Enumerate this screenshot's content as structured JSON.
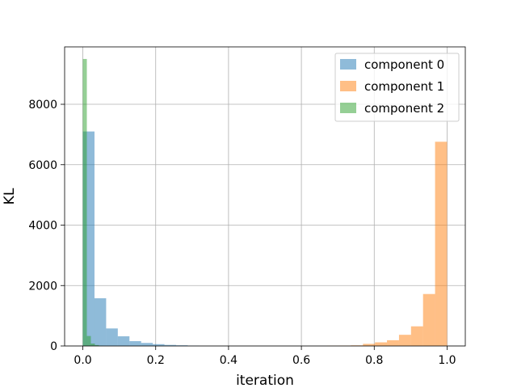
{
  "chart_data": {
    "type": "bar",
    "title": "",
    "xlabel": "iteration",
    "ylabel": "KL",
    "xlim": [
      -0.05,
      1.05
    ],
    "ylim": [
      0,
      9900
    ],
    "grid": true,
    "legend_position": "top-right",
    "x_ticks": [
      "0.0",
      "0.2",
      "0.4",
      "0.6",
      "0.8",
      "1.0"
    ],
    "x_tick_values": [
      0.0,
      0.2,
      0.4,
      0.6,
      0.8,
      1.0
    ],
    "y_ticks": [
      "0",
      "2000",
      "4000",
      "6000",
      "8000"
    ],
    "y_tick_values": [
      0,
      2000,
      4000,
      6000,
      8000
    ],
    "series": [
      {
        "name": "component 0",
        "color": "#1f77b4",
        "opacity": 0.5,
        "bins": [
          {
            "x0": 0.0,
            "x1": 0.032,
            "count": 7100
          },
          {
            "x0": 0.032,
            "x1": 0.064,
            "count": 1580
          },
          {
            "x0": 0.064,
            "x1": 0.096,
            "count": 580
          },
          {
            "x0": 0.096,
            "x1": 0.128,
            "count": 320
          },
          {
            "x0": 0.128,
            "x1": 0.16,
            "count": 160
          },
          {
            "x0": 0.16,
            "x1": 0.192,
            "count": 100
          },
          {
            "x0": 0.192,
            "x1": 0.224,
            "count": 60
          },
          {
            "x0": 0.224,
            "x1": 0.256,
            "count": 35
          },
          {
            "x0": 0.256,
            "x1": 0.288,
            "count": 22
          },
          {
            "x0": 0.288,
            "x1": 0.32,
            "count": 12
          }
        ]
      },
      {
        "name": "component 1",
        "color": "#ff7f0e",
        "opacity": 0.5,
        "bins": [
          {
            "x0": 0.67,
            "x1": 0.703,
            "count": 8
          },
          {
            "x0": 0.703,
            "x1": 0.736,
            "count": 12
          },
          {
            "x0": 0.736,
            "x1": 0.769,
            "count": 20
          },
          {
            "x0": 0.769,
            "x1": 0.802,
            "count": 70
          },
          {
            "x0": 0.802,
            "x1": 0.835,
            "count": 120
          },
          {
            "x0": 0.835,
            "x1": 0.868,
            "count": 190
          },
          {
            "x0": 0.868,
            "x1": 0.901,
            "count": 370
          },
          {
            "x0": 0.901,
            "x1": 0.934,
            "count": 650
          },
          {
            "x0": 0.934,
            "x1": 0.967,
            "count": 1720
          },
          {
            "x0": 0.967,
            "x1": 1.0,
            "count": 6760
          }
        ]
      },
      {
        "name": "component 2",
        "color": "#2ca02c",
        "opacity": 0.5,
        "bins": [
          {
            "x0": 0.0,
            "x1": 0.011,
            "count": 9500
          },
          {
            "x0": 0.011,
            "x1": 0.022,
            "count": 330
          },
          {
            "x0": 0.022,
            "x1": 0.033,
            "count": 80
          },
          {
            "x0": 0.033,
            "x1": 0.044,
            "count": 30
          },
          {
            "x0": 0.044,
            "x1": 0.055,
            "count": 10
          }
        ]
      }
    ]
  }
}
